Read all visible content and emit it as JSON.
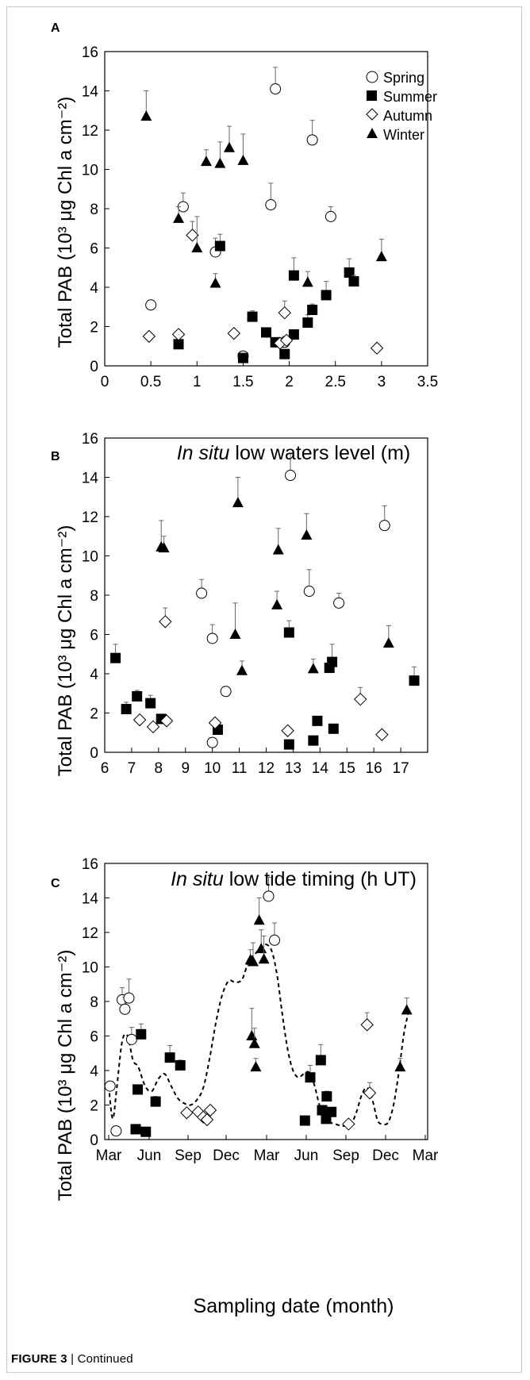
{
  "caption": {
    "prefix": "FIGURE 3",
    "text": "| Continued"
  },
  "legend": [
    "Spring",
    "Summer",
    "Autumn",
    "Winter"
  ],
  "chart_data": [
    {
      "type": "scatter",
      "panel_label": "A",
      "xlabel_italic": "In situ",
      "xlabel_rest": " low waters level (m)",
      "ylabel": "Total PAB (10³ μg Chl a cm⁻²)",
      "xlim": [
        0,
        3.5
      ],
      "ylim": [
        0,
        16
      ],
      "xticks": [
        "0",
        "0.5",
        "1",
        "1.5",
        "2",
        "2.5",
        "3",
        "3.5"
      ],
      "yticks": [
        "0",
        "2",
        "4",
        "6",
        "8",
        "10",
        "12",
        "14",
        "16"
      ],
      "legend": "top-right",
      "series": [
        {
          "name": "Spring",
          "marker": "circle-open",
          "points": [
            [
              0.5,
              3.1,
              0
            ],
            [
              0.85,
              8.1,
              0.7
            ],
            [
              1.2,
              5.8,
              0.7
            ],
            [
              1.5,
              0.5,
              0
            ],
            [
              1.8,
              8.2,
              1.1
            ],
            [
              1.85,
              14.1,
              1.1
            ],
            [
              1.95,
              1.2,
              0.3
            ],
            [
              2.25,
              11.5,
              1.0
            ],
            [
              2.45,
              7.6,
              0.5
            ]
          ]
        },
        {
          "name": "Summer",
          "marker": "square-filled",
          "points": [
            [
              0.8,
              1.1,
              0
            ],
            [
              1.25,
              6.1,
              0.6
            ],
            [
              1.5,
              0.4,
              0
            ],
            [
              1.6,
              2.5,
              0.3
            ],
            [
              1.75,
              1.7,
              0.2
            ],
            [
              1.85,
              1.2,
              0
            ],
            [
              1.95,
              0.6,
              0
            ],
            [
              2.05,
              4.6,
              0.9
            ],
            [
              2.05,
              1.6,
              0
            ],
            [
              2.2,
              2.2,
              0.4
            ],
            [
              2.25,
              2.85,
              0.3
            ],
            [
              2.4,
              3.6,
              0.7
            ],
            [
              2.65,
              4.75,
              0.7
            ],
            [
              2.7,
              4.3,
              0.3
            ]
          ]
        },
        {
          "name": "Autumn",
          "marker": "diamond-open",
          "points": [
            [
              0.48,
              1.5,
              0
            ],
            [
              0.8,
              1.6,
              0
            ],
            [
              0.95,
              6.65,
              0.7
            ],
            [
              1.4,
              1.65,
              0
            ],
            [
              1.9,
              1.15,
              0
            ],
            [
              1.95,
              2.7,
              0.6
            ],
            [
              1.97,
              1.3,
              0
            ],
            [
              2.95,
              0.9,
              0
            ]
          ]
        },
        {
          "name": "Winter",
          "marker": "triangle-filled",
          "points": [
            [
              0.45,
              12.7,
              1.3
            ],
            [
              0.8,
              7.5,
              0.6
            ],
            [
              1.0,
              6.0,
              1.6
            ],
            [
              1.1,
              10.4,
              0.6
            ],
            [
              1.2,
              4.2,
              0.5
            ],
            [
              1.25,
              10.3,
              1.1
            ],
            [
              1.35,
              11.1,
              1.1
            ],
            [
              1.5,
              10.45,
              1.35
            ],
            [
              2.2,
              4.25,
              0.55
            ],
            [
              3.0,
              5.55,
              0.9
            ]
          ]
        }
      ]
    },
    {
      "type": "scatter",
      "panel_label": "B",
      "xlabel_italic": "In situ",
      "xlabel_rest": " low tide timing (h UT)",
      "ylabel": "Total PAB (10³ μg Chl a cm⁻²)",
      "xlim": [
        6,
        18
      ],
      "ylim": [
        0,
        16
      ],
      "xticks": [
        "6",
        "7",
        "8",
        "9",
        "10",
        "11",
        "12",
        "13",
        "14",
        "15",
        "16",
        "17"
      ],
      "yticks": [
        "0",
        "2",
        "4",
        "6",
        "8",
        "10",
        "12",
        "14",
        "16"
      ],
      "series": [
        {
          "name": "Spring",
          "marker": "circle-open",
          "points": [
            [
              9.6,
              8.1,
              0.7
            ],
            [
              10.0,
              5.8,
              0.7
            ],
            [
              10.0,
              0.5,
              0
            ],
            [
              10.5,
              3.1,
              0
            ],
            [
              12.9,
              14.1,
              1.1
            ],
            [
              13.6,
              8.2,
              1.1
            ],
            [
              14.7,
              7.6,
              0.5
            ],
            [
              16.4,
              11.55,
              1.0
            ]
          ]
        },
        {
          "name": "Summer",
          "marker": "square-filled",
          "points": [
            [
              6.4,
              4.8,
              0.7
            ],
            [
              6.8,
              2.2,
              0.35
            ],
            [
              7.2,
              2.85,
              0.3
            ],
            [
              7.7,
              2.5,
              0.4
            ],
            [
              8.1,
              1.7,
              0.2
            ],
            [
              10.2,
              1.15,
              0
            ],
            [
              12.85,
              6.1,
              0.6
            ],
            [
              12.85,
              0.4,
              0
            ],
            [
              13.75,
              0.6,
              0
            ],
            [
              13.9,
              1.6,
              0
            ],
            [
              14.35,
              4.3,
              0.4
            ],
            [
              14.45,
              4.6,
              0.9
            ],
            [
              14.5,
              1.2,
              0
            ],
            [
              17.5,
              3.65,
              0.7
            ]
          ]
        },
        {
          "name": "Autumn",
          "marker": "diamond-open",
          "points": [
            [
              7.3,
              1.65,
              0
            ],
            [
              7.8,
              1.3,
              0
            ],
            [
              8.25,
              6.65,
              0.7
            ],
            [
              8.3,
              1.6,
              0
            ],
            [
              10.1,
              1.5,
              0
            ],
            [
              12.8,
              1.1,
              0
            ],
            [
              15.5,
              2.7,
              0.6
            ],
            [
              16.3,
              0.9,
              0
            ]
          ]
        },
        {
          "name": "Winter",
          "marker": "triangle-filled",
          "points": [
            [
              8.1,
              10.45,
              1.35
            ],
            [
              8.2,
              10.4,
              0.6
            ],
            [
              10.85,
              6.0,
              1.6
            ],
            [
              10.95,
              12.7,
              1.3
            ],
            [
              11.1,
              4.15,
              0.5
            ],
            [
              12.4,
              7.5,
              0.7
            ],
            [
              12.45,
              10.3,
              1.1
            ],
            [
              13.5,
              11.05,
              1.1
            ],
            [
              13.75,
              4.25,
              0.5
            ],
            [
              16.55,
              5.55,
              0.9
            ]
          ]
        }
      ]
    },
    {
      "type": "scatter",
      "panel_label": "C",
      "xlabel": "Sampling date (month)",
      "ylabel": "Total PAB (10³ μg Chl a cm⁻²)",
      "xlim": [
        0,
        24
      ],
      "ylim": [
        0,
        16
      ],
      "xticks": [
        "Mar",
        "Jun",
        "Sep",
        "Dec",
        "Mar",
        "Jun",
        "Sep",
        "Dec",
        "Mar"
      ],
      "yticks": [
        "0",
        "2",
        "4",
        "6",
        "8",
        "10",
        "12",
        "14",
        "16"
      ],
      "x_unit": "months since first March tick",
      "series": [
        {
          "name": "Spring",
          "marker": "circle-open",
          "points": [
            [
              0.1,
              3.1,
              0
            ],
            [
              0.55,
              0.5,
              0
            ],
            [
              1.0,
              8.1,
              0.7
            ],
            [
              1.2,
              7.55,
              0.7
            ],
            [
              1.5,
              8.2,
              1.1
            ],
            [
              1.7,
              5.8,
              0.7
            ],
            [
              12.15,
              14.1,
              1.1
            ],
            [
              12.6,
              11.55,
              1.0
            ]
          ]
        },
        {
          "name": "Summer",
          "marker": "square-filled",
          "points": [
            [
              2.0,
              0.6,
              0
            ],
            [
              2.15,
              2.9,
              0
            ],
            [
              2.4,
              6.1,
              0.6
            ],
            [
              2.75,
              0.45,
              0
            ],
            [
              3.5,
              2.2,
              0.3
            ],
            [
              4.6,
              4.75,
              0.7
            ],
            [
              5.4,
              4.3,
              0.3
            ],
            [
              14.9,
              1.1,
              0
            ],
            [
              15.3,
              3.6,
              0.7
            ],
            [
              16.1,
              4.6,
              0.9
            ],
            [
              16.2,
              1.7,
              0.2
            ],
            [
              16.5,
              1.2,
              0
            ],
            [
              16.55,
              2.5,
              0.3
            ],
            [
              16.9,
              1.6,
              0
            ]
          ]
        },
        {
          "name": "Autumn",
          "marker": "diamond-open",
          "points": [
            [
              5.9,
              1.55,
              0
            ],
            [
              6.8,
              1.6,
              0
            ],
            [
              7.2,
              1.3,
              0
            ],
            [
              7.5,
              1.15,
              0
            ],
            [
              7.75,
              1.7,
              0
            ],
            [
              18.2,
              0.9,
              0
            ],
            [
              19.6,
              6.65,
              0.7
            ],
            [
              19.8,
              2.7,
              0.6
            ]
          ]
        },
        {
          "name": "Winter",
          "marker": "triangle-filled",
          "points": [
            [
              10.8,
              10.4,
              0.6
            ],
            [
              10.9,
              6.0,
              1.6
            ],
            [
              11.0,
              10.3,
              1.1
            ],
            [
              11.1,
              5.55,
              0.9
            ],
            [
              11.2,
              4.2,
              0.5
            ],
            [
              11.45,
              12.7,
              1.3
            ],
            [
              11.6,
              11.05,
              1.1
            ],
            [
              11.8,
              10.45,
              1.35
            ],
            [
              22.1,
              4.2,
              0.5
            ],
            [
              22.6,
              7.5,
              0.7
            ]
          ]
        }
      ],
      "trend_line": {
        "style": "dashed",
        "x": [
          0,
          0.3,
          0.6,
          1.0,
          1.4,
          1.8,
          2.2,
          2.7,
          3.2,
          3.7,
          4.2,
          4.7,
          5.2,
          5.7,
          6.2,
          6.7,
          7.2,
          7.7,
          8.2,
          8.7,
          9.2,
          9.7,
          10.2,
          10.7,
          11.2,
          11.6,
          12.0,
          12.4,
          12.8,
          13.2,
          13.6,
          14.0,
          14.4,
          14.8,
          15.2,
          15.6,
          16.0,
          16.4,
          16.8,
          17.2,
          17.6,
          18.0,
          18.4,
          18.8,
          19.2,
          19.6,
          20.0,
          20.4,
          20.8,
          21.2,
          21.6,
          22.0,
          22.4,
          22.8
        ],
        "y": [
          3.1,
          1.2,
          3.0,
          5.7,
          6.0,
          4.6,
          4.2,
          3.1,
          2.8,
          3.5,
          3.8,
          3.1,
          2.4,
          2.1,
          2.0,
          2.3,
          3.0,
          4.7,
          6.8,
          8.4,
          9.2,
          9.1,
          9.3,
          10.4,
          10.8,
          11.2,
          11.3,
          10.9,
          9.5,
          7.2,
          5.2,
          4.0,
          3.6,
          3.8,
          3.9,
          3.2,
          2.0,
          1.3,
          1.0,
          0.9,
          0.8,
          0.8,
          0.9,
          1.6,
          2.6,
          3.0,
          2.3,
          1.1,
          0.9,
          1.0,
          2.0,
          3.9,
          6.2,
          7.6
        ]
      }
    }
  ]
}
